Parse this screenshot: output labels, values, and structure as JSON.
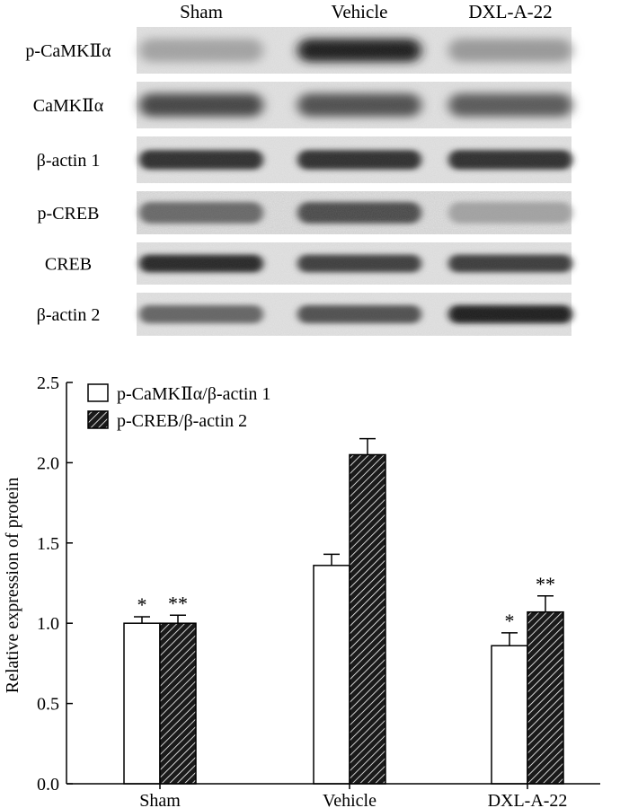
{
  "blot": {
    "columns": [
      "Sham",
      "Vehicle",
      "DXL-A-22"
    ],
    "rows": [
      {
        "label": "p-CaMKⅡα",
        "intensity": [
          0.3,
          0.95,
          0.35
        ],
        "style": "diffuse"
      },
      {
        "label": "CaMKⅡα",
        "intensity": [
          0.75,
          0.7,
          0.65
        ],
        "style": "diffuse"
      },
      {
        "label": "β-actin 1",
        "intensity": [
          0.85,
          0.85,
          0.85
        ],
        "style": "sharp"
      },
      {
        "label": "p-CREB",
        "intensity": [
          0.6,
          0.75,
          0.3
        ],
        "style": "grainy"
      },
      {
        "label": "CREB",
        "intensity": [
          0.9,
          0.78,
          0.8
        ],
        "style": "sharp"
      },
      {
        "label": "β-actin 2",
        "intensity": [
          0.6,
          0.7,
          0.95
        ],
        "style": "sharp"
      }
    ]
  },
  "chart_data": {
    "type": "bar",
    "categories": [
      "Sham",
      "Vehicle",
      "DXL-A-22"
    ],
    "series": [
      {
        "name": "p-CaMKⅡα/β-actin 1",
        "values": [
          1.0,
          1.36,
          0.86
        ],
        "errors": [
          0.04,
          0.07,
          0.08
        ],
        "significance": [
          "*",
          "",
          "*"
        ],
        "fill": "open"
      },
      {
        "name": "p-CREB/β-actin 2",
        "values": [
          1.0,
          2.05,
          1.07
        ],
        "errors": [
          0.05,
          0.1,
          0.1
        ],
        "significance": [
          "**",
          "",
          "**"
        ],
        "fill": "hatched"
      }
    ],
    "ylabel": "Relative expression of protein",
    "xlabel": "",
    "ylim": [
      0,
      2.5
    ],
    "yticks": [
      "0.0",
      "0.5",
      "1.0",
      "1.5",
      "2.0",
      "2.5"
    ],
    "grid": false,
    "legend": "top-left"
  }
}
